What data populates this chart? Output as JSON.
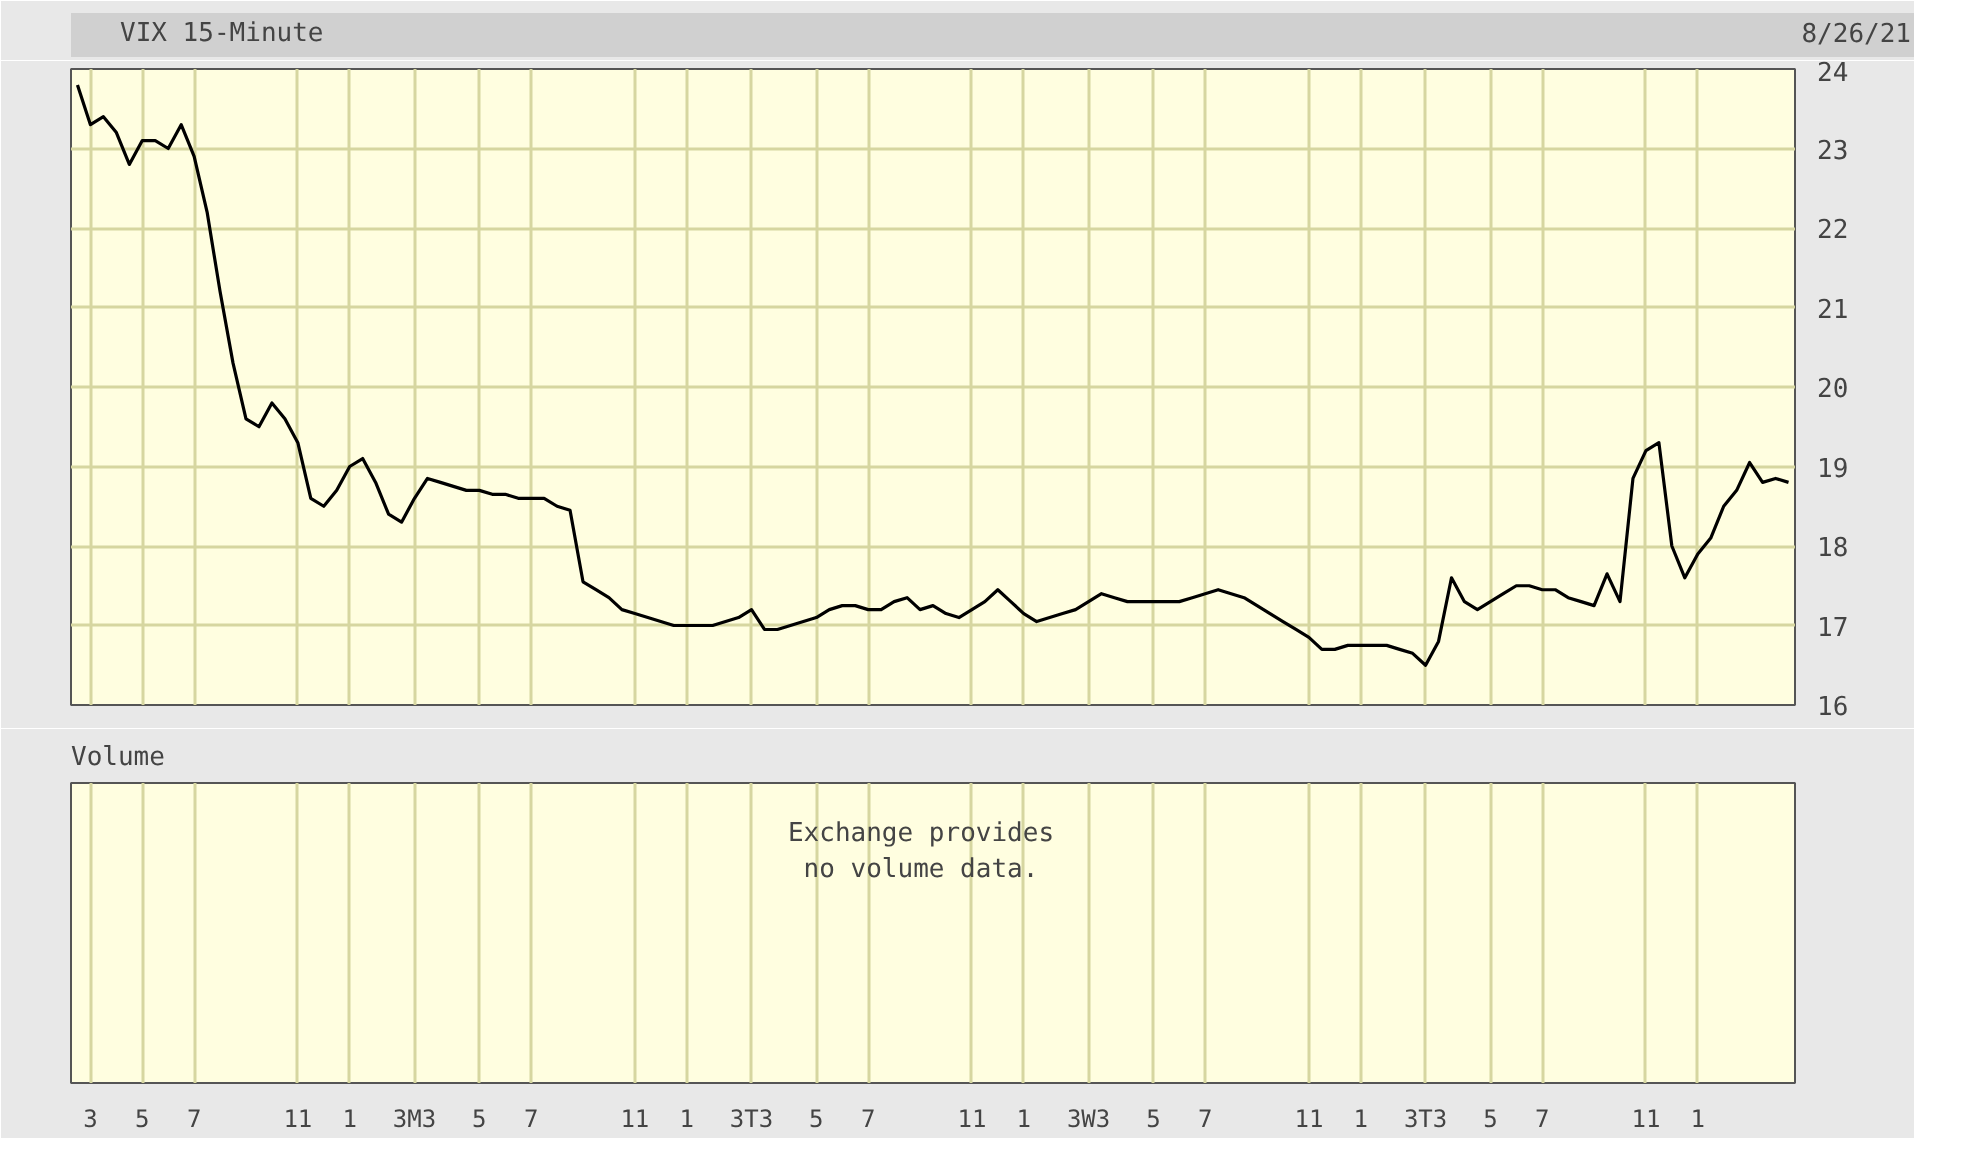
{
  "chart_data": [
    {
      "type": "line",
      "title": "8/26/21",
      "ylim": [
        16,
        24
      ],
      "yticks": [
        16,
        17,
        18,
        19,
        20,
        21,
        22,
        23,
        24
      ],
      "categories": [
        null,
        "3",
        null,
        null,
        null,
        "5",
        null,
        null,
        null,
        "7",
        null,
        null,
        null,
        null,
        null,
        null,
        null,
        "11",
        null,
        null,
        null,
        "1",
        null,
        null,
        null,
        null,
        "3M3",
        null,
        null,
        null,
        null,
        "5",
        null,
        null,
        null,
        "7",
        null,
        null,
        null,
        null,
        null,
        null,
        null,
        "11",
        null,
        null,
        null,
        "1",
        null,
        null,
        null,
        null,
        "3T3",
        null,
        null,
        null,
        null,
        "5",
        null,
        null,
        null,
        "7",
        null,
        null,
        null,
        null,
        null,
        null,
        null,
        "11",
        null,
        null,
        null,
        "1",
        null,
        null,
        null,
        null,
        "3W3",
        null,
        null,
        null,
        null,
        "5",
        null,
        null,
        null,
        "7",
        null,
        null,
        null,
        null,
        null,
        null,
        null,
        "11",
        null,
        null,
        null,
        "1",
        null,
        null,
        null,
        null,
        "3T3",
        null,
        null,
        null,
        null,
        "5",
        null,
        null,
        null,
        "7",
        null,
        null,
        null,
        null,
        null,
        null,
        null,
        "11",
        null,
        null,
        null,
        "1",
        null,
        null,
        null,
        null,
        null,
        null,
        null
      ],
      "grid": true,
      "legend": "top left",
      "tick_labels": "y",
      "series": [
        {
          "name": "VIX 15-Minute",
          "color": "#000000",
          "values": [
            23.8,
            23.3,
            23.4,
            23.2,
            22.8,
            23.1,
            23.1,
            23.0,
            23.3,
            22.9,
            22.2,
            21.2,
            20.3,
            19.6,
            19.5,
            19.8,
            19.6,
            19.3,
            18.6,
            18.5,
            18.7,
            19.0,
            19.1,
            18.8,
            18.4,
            18.3,
            18.6,
            18.85,
            18.8,
            18.75,
            18.7,
            18.7,
            18.65,
            18.65,
            18.6,
            18.6,
            18.6,
            18.5,
            18.45,
            17.55,
            17.45,
            17.35,
            17.2,
            17.15,
            17.1,
            17.05,
            17.0,
            17.0,
            17.0,
            17.0,
            17.05,
            17.1,
            17.2,
            16.95,
            16.95,
            17.0,
            17.05,
            17.1,
            17.2,
            17.25,
            17.25,
            17.2,
            17.2,
            17.3,
            17.35,
            17.2,
            17.25,
            17.15,
            17.1,
            17.2,
            17.3,
            17.45,
            17.3,
            17.15,
            17.05,
            17.1,
            17.15,
            17.2,
            17.3,
            17.4,
            17.35,
            17.3,
            17.3,
            17.3,
            17.3,
            17.3,
            17.35,
            17.4,
            17.45,
            17.4,
            17.35,
            17.25,
            17.15,
            17.05,
            16.95,
            16.85,
            16.7,
            16.7,
            16.75,
            16.75,
            16.75,
            16.75,
            16.7,
            16.65,
            16.5,
            16.8,
            17.6,
            17.3,
            17.2,
            17.3,
            17.4,
            17.5,
            17.5,
            17.45,
            17.45,
            17.35,
            17.3,
            17.25,
            17.65,
            17.3,
            18.85,
            19.2,
            19.3,
            18.0,
            17.6,
            17.9,
            18.1,
            18.5,
            18.7,
            19.05,
            18.8,
            18.85,
            18.8
          ]
        }
      ]
    },
    {
      "type": "other",
      "title": "Volume",
      "annotations": [
        "Exchange provides\nno volume data."
      ]
    }
  ]
}
